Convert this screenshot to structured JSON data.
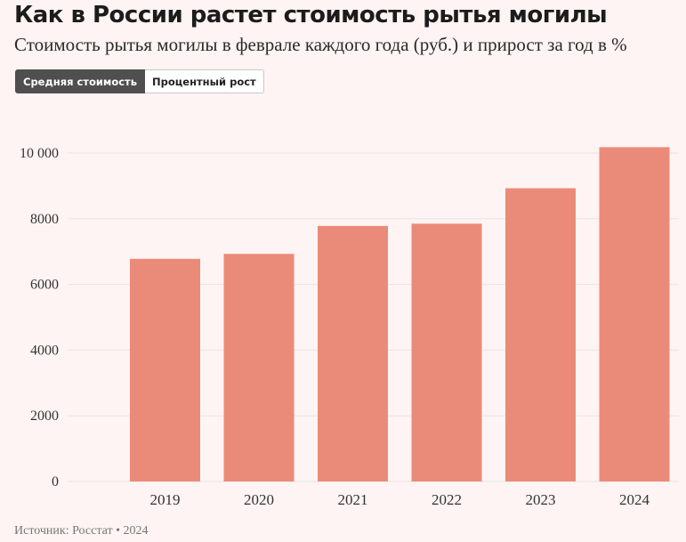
{
  "header": {
    "title": "Как в России растет стоимость рытья могилы",
    "subtitle": "Стоимость рытья могилы в феврале каждого года (руб.) и прирост за год в %"
  },
  "tabs": [
    {
      "label": "Средняя стоимость",
      "active": true
    },
    {
      "label": "Процентный рост",
      "active": false
    }
  ],
  "footer": {
    "source": "Источник: Росстат • 2024"
  },
  "colors": {
    "bar": "#ea8b79",
    "grid": "#ece4e3",
    "background": "#fdf4f3"
  },
  "chart_data": {
    "type": "bar",
    "categories": [
      "2019",
      "2020",
      "2021",
      "2022",
      "2023",
      "2024"
    ],
    "values": [
      6780,
      6930,
      7780,
      7850,
      8930,
      10180
    ],
    "yticks": [
      0,
      2000,
      4000,
      6000,
      8000,
      10000
    ],
    "ytick_labels": [
      "0",
      "2000",
      "4000",
      "6000",
      "8000",
      "10 000"
    ],
    "ylim": [
      0,
      10500
    ],
    "grid": true,
    "legend": "none"
  }
}
